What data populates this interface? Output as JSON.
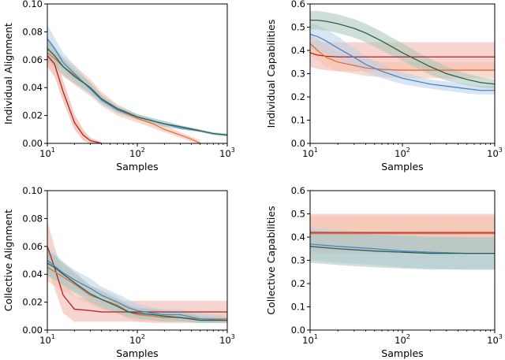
{
  "chart_data": [
    {
      "type": "line",
      "id": "ia",
      "xlabel": "Samples",
      "ylabel": "Individual Alignment",
      "xscale": "log",
      "xlim": [
        10,
        1000
      ],
      "ylim": [
        0,
        0.1
      ],
      "yticks": [
        "0.00",
        "0.02",
        "0.04",
        "0.06",
        "0.08",
        "0.10"
      ],
      "xticks": [
        {
          "base": "10",
          "exp": "1"
        },
        {
          "base": "10",
          "exp": "2"
        },
        {
          "base": "10",
          "exp": "3"
        }
      ],
      "series": [
        {
          "name": "red",
          "color": "#b22222",
          "band": "#e8a090",
          "x": [
            10,
            12,
            15,
            20,
            25,
            30,
            40
          ],
          "y": [
            0.063,
            0.057,
            0.037,
            0.015,
            0.006,
            0.002,
            0.0
          ],
          "lo": [
            0.055,
            0.048,
            0.03,
            0.01,
            0.002,
            0.0,
            0.0
          ],
          "hi": [
            0.07,
            0.064,
            0.045,
            0.021,
            0.01,
            0.004,
            0.001
          ]
        },
        {
          "name": "orange",
          "color": "#e07040",
          "band": "#f5b8a0",
          "x": [
            10,
            12,
            15,
            20,
            30,
            40,
            60,
            100,
            150,
            200,
            300,
            400,
            500
          ],
          "y": [
            0.065,
            0.061,
            0.055,
            0.049,
            0.04,
            0.032,
            0.024,
            0.018,
            0.014,
            0.01,
            0.006,
            0.003,
            0.0
          ],
          "lo": [
            0.058,
            0.054,
            0.048,
            0.042,
            0.034,
            0.027,
            0.02,
            0.015,
            0.011,
            0.008,
            0.004,
            0.001,
            0.0
          ],
          "hi": [
            0.072,
            0.068,
            0.062,
            0.056,
            0.046,
            0.037,
            0.028,
            0.021,
            0.017,
            0.013,
            0.008,
            0.005,
            0.002
          ]
        },
        {
          "name": "blue",
          "color": "#4a86c0",
          "band": "#b8d0ea",
          "x": [
            10,
            12,
            15,
            20,
            30,
            40,
            60,
            100,
            150,
            200,
            300,
            500,
            700,
            1000
          ],
          "y": [
            0.075,
            0.068,
            0.058,
            0.05,
            0.039,
            0.031,
            0.024,
            0.019,
            0.016,
            0.014,
            0.011,
            0.009,
            0.007,
            0.006
          ],
          "lo": [
            0.065,
            0.06,
            0.052,
            0.045,
            0.035,
            0.028,
            0.022,
            0.017,
            0.014,
            0.012,
            0.01,
            0.008,
            0.006,
            0.005
          ],
          "hi": [
            0.085,
            0.076,
            0.065,
            0.056,
            0.043,
            0.034,
            0.026,
            0.021,
            0.018,
            0.016,
            0.013,
            0.01,
            0.008,
            0.007
          ]
        },
        {
          "name": "green",
          "color": "#2f5f4f",
          "band": "#a8c4b8",
          "x": [
            10,
            12,
            15,
            20,
            30,
            40,
            60,
            100,
            150,
            200,
            300,
            500,
            700,
            1000
          ],
          "y": [
            0.068,
            0.063,
            0.055,
            0.048,
            0.04,
            0.032,
            0.025,
            0.019,
            0.016,
            0.014,
            0.012,
            0.009,
            0.007,
            0.006
          ],
          "lo": [
            0.06,
            0.056,
            0.049,
            0.043,
            0.036,
            0.029,
            0.022,
            0.017,
            0.014,
            0.012,
            0.01,
            0.008,
            0.006,
            0.005
          ],
          "hi": [
            0.076,
            0.07,
            0.061,
            0.053,
            0.044,
            0.035,
            0.027,
            0.021,
            0.018,
            0.016,
            0.013,
            0.01,
            0.008,
            0.007
          ]
        }
      ]
    },
    {
      "type": "line",
      "id": "ic",
      "xlabel": "Samples",
      "ylabel": "Individual Capabilities",
      "xscale": "log",
      "xlim": [
        10,
        1000
      ],
      "ylim": [
        0,
        0.6
      ],
      "yticks": [
        "0.0",
        "0.1",
        "0.2",
        "0.3",
        "0.4",
        "0.5",
        "0.6"
      ],
      "xticks": [
        {
          "base": "10",
          "exp": "1"
        },
        {
          "base": "10",
          "exp": "2"
        },
        {
          "base": "10",
          "exp": "3"
        }
      ],
      "series": [
        {
          "name": "red",
          "color": "#b22222",
          "band": "#f0b0a8",
          "x": [
            10,
            12,
            15,
            20,
            30,
            40,
            60,
            100,
            200,
            500,
            1000
          ],
          "y": [
            0.39,
            0.38,
            0.375,
            0.372,
            0.372,
            0.372,
            0.372,
            0.372,
            0.372,
            0.372,
            0.372
          ],
          "lo": [
            0.33,
            0.32,
            0.315,
            0.31,
            0.31,
            0.31,
            0.31,
            0.31,
            0.31,
            0.31,
            0.31
          ],
          "hi": [
            0.44,
            0.44,
            0.435,
            0.435,
            0.435,
            0.435,
            0.435,
            0.435,
            0.435,
            0.435,
            0.435
          ]
        },
        {
          "name": "orange",
          "color": "#e07040",
          "band": "#f5c0a8",
          "x": [
            10,
            12,
            15,
            20,
            30,
            40,
            60,
            100,
            200,
            500,
            1000
          ],
          "y": [
            0.43,
            0.4,
            0.37,
            0.35,
            0.335,
            0.325,
            0.318,
            0.315,
            0.315,
            0.315,
            0.315
          ],
          "lo": [
            0.38,
            0.36,
            0.33,
            0.31,
            0.3,
            0.29,
            0.285,
            0.28,
            0.28,
            0.28,
            0.28
          ],
          "hi": [
            0.48,
            0.45,
            0.42,
            0.39,
            0.37,
            0.36,
            0.35,
            0.35,
            0.35,
            0.35,
            0.35
          ]
        },
        {
          "name": "blue",
          "color": "#4a86c0",
          "band": "#b8d0ea",
          "x": [
            10,
            12,
            15,
            20,
            30,
            40,
            60,
            100,
            200,
            500,
            700,
            1000
          ],
          "y": [
            0.47,
            0.46,
            0.44,
            0.41,
            0.37,
            0.34,
            0.31,
            0.28,
            0.255,
            0.235,
            0.228,
            0.228
          ],
          "lo": [
            0.41,
            0.4,
            0.385,
            0.36,
            0.33,
            0.305,
            0.28,
            0.255,
            0.235,
            0.215,
            0.21,
            0.21
          ],
          "hi": [
            0.52,
            0.51,
            0.49,
            0.46,
            0.41,
            0.375,
            0.34,
            0.305,
            0.275,
            0.255,
            0.248,
            0.248
          ]
        },
        {
          "name": "green",
          "color": "#2f5f4f",
          "band": "#a8c4b8",
          "x": [
            10,
            12,
            15,
            20,
            30,
            40,
            60,
            100,
            150,
            200,
            300,
            500,
            700,
            1000
          ],
          "y": [
            0.53,
            0.53,
            0.525,
            0.515,
            0.495,
            0.475,
            0.44,
            0.39,
            0.355,
            0.33,
            0.3,
            0.275,
            0.262,
            0.255
          ],
          "lo": [
            0.49,
            0.49,
            0.485,
            0.475,
            0.455,
            0.435,
            0.4,
            0.355,
            0.32,
            0.295,
            0.27,
            0.25,
            0.24,
            0.235
          ],
          "hi": [
            0.57,
            0.57,
            0.565,
            0.555,
            0.535,
            0.515,
            0.48,
            0.43,
            0.39,
            0.365,
            0.33,
            0.3,
            0.285,
            0.275
          ]
        }
      ]
    },
    {
      "type": "line",
      "id": "ca",
      "xlabel": "Samples",
      "ylabel": "Collective Alignment",
      "xscale": "log",
      "xlim": [
        10,
        1000
      ],
      "ylim": [
        0,
        0.1
      ],
      "yticks": [
        "0.00",
        "0.02",
        "0.04",
        "0.06",
        "0.08",
        "0.10"
      ],
      "xticks": [
        {
          "base": "10",
          "exp": "1"
        },
        {
          "base": "10",
          "exp": "2"
        },
        {
          "base": "10",
          "exp": "3"
        }
      ],
      "series": [
        {
          "name": "red",
          "color": "#b22222",
          "band": "#f0b0a8",
          "x": [
            10,
            12,
            15,
            20,
            30,
            40,
            60,
            100,
            200,
            500,
            1000
          ],
          "y": [
            0.06,
            0.045,
            0.025,
            0.015,
            0.014,
            0.013,
            0.013,
            0.013,
            0.013,
            0.013,
            0.013
          ],
          "lo": [
            0.045,
            0.03,
            0.012,
            0.006,
            0.006,
            0.006,
            0.006,
            0.006,
            0.006,
            0.006,
            0.006
          ],
          "hi": [
            0.078,
            0.06,
            0.04,
            0.024,
            0.022,
            0.021,
            0.021,
            0.021,
            0.021,
            0.021,
            0.021
          ]
        },
        {
          "name": "orange",
          "color": "#e07040",
          "band": "#f5c0a8",
          "x": [
            10,
            12,
            15,
            20,
            30,
            40,
            60,
            80,
            100,
            150,
            200,
            300,
            500,
            1000
          ],
          "y": [
            0.045,
            0.042,
            0.038,
            0.033,
            0.025,
            0.022,
            0.018,
            0.013,
            0.011,
            0.01,
            0.009,
            0.009,
            0.008,
            0.008
          ],
          "lo": [
            0.035,
            0.032,
            0.028,
            0.024,
            0.018,
            0.015,
            0.012,
            0.008,
            0.006,
            0.005,
            0.005,
            0.005,
            0.005,
            0.005
          ],
          "hi": [
            0.056,
            0.052,
            0.048,
            0.042,
            0.032,
            0.029,
            0.024,
            0.018,
            0.016,
            0.015,
            0.014,
            0.013,
            0.012,
            0.011
          ]
        },
        {
          "name": "blue",
          "color": "#4a86c0",
          "band": "#b8d0ea",
          "x": [
            10,
            12,
            15,
            20,
            30,
            40,
            60,
            80,
            100,
            150,
            200,
            300,
            500,
            1000
          ],
          "y": [
            0.05,
            0.046,
            0.041,
            0.036,
            0.03,
            0.025,
            0.02,
            0.016,
            0.014,
            0.012,
            0.011,
            0.011,
            0.008,
            0.007
          ],
          "lo": [
            0.04,
            0.037,
            0.033,
            0.028,
            0.023,
            0.019,
            0.014,
            0.011,
            0.009,
            0.008,
            0.007,
            0.007,
            0.005,
            0.005
          ],
          "hi": [
            0.06,
            0.055,
            0.049,
            0.043,
            0.037,
            0.031,
            0.026,
            0.022,
            0.019,
            0.016,
            0.015,
            0.015,
            0.012,
            0.01
          ]
        },
        {
          "name": "green",
          "color": "#2f5f4f",
          "band": "#a8c4b8",
          "x": [
            10,
            12,
            15,
            20,
            30,
            40,
            60,
            80,
            100,
            150,
            200,
            300,
            500,
            1000
          ],
          "y": [
            0.048,
            0.045,
            0.04,
            0.034,
            0.026,
            0.022,
            0.017,
            0.013,
            0.012,
            0.011,
            0.01,
            0.009,
            0.007,
            0.007
          ],
          "lo": [
            0.039,
            0.036,
            0.032,
            0.027,
            0.02,
            0.016,
            0.012,
            0.009,
            0.008,
            0.007,
            0.006,
            0.006,
            0.005,
            0.005
          ],
          "hi": [
            0.057,
            0.054,
            0.048,
            0.041,
            0.032,
            0.028,
            0.022,
            0.018,
            0.016,
            0.015,
            0.014,
            0.013,
            0.01,
            0.009
          ]
        }
      ]
    },
    {
      "type": "line",
      "id": "cc",
      "xlabel": "Samples",
      "ylabel": "Collective Capabilities",
      "xscale": "log",
      "xlim": [
        10,
        1000
      ],
      "ylim": [
        0,
        0.6
      ],
      "yticks": [
        "0.0",
        "0.1",
        "0.2",
        "0.3",
        "0.4",
        "0.5",
        "0.6"
      ],
      "xticks": [
        {
          "base": "10",
          "exp": "1"
        },
        {
          "base": "10",
          "exp": "2"
        },
        {
          "base": "10",
          "exp": "3"
        }
      ],
      "series": [
        {
          "name": "red",
          "color": "#b22222",
          "band": "#f0b0a8",
          "x": [
            10,
            1000
          ],
          "y": [
            0.42,
            0.42
          ],
          "lo": [
            0.33,
            0.33
          ],
          "hi": [
            0.5,
            0.5
          ]
        },
        {
          "name": "orange",
          "color": "#e07040",
          "band": "#f5c0a8",
          "x": [
            10,
            1000
          ],
          "y": [
            0.415,
            0.415
          ],
          "lo": [
            0.34,
            0.34
          ],
          "hi": [
            0.49,
            0.49
          ]
        },
        {
          "name": "blue",
          "color": "#4a86c0",
          "band": "#b8d0ea",
          "x": [
            10,
            20,
            50,
            100,
            200,
            500,
            1000
          ],
          "y": [
            0.37,
            0.36,
            0.35,
            0.34,
            0.335,
            0.33,
            0.33
          ],
          "lo": [
            0.3,
            0.29,
            0.28,
            0.27,
            0.265,
            0.26,
            0.26
          ],
          "hi": [
            0.44,
            0.43,
            0.42,
            0.41,
            0.405,
            0.4,
            0.4
          ]
        },
        {
          "name": "green",
          "color": "#2f5f4f",
          "band": "#a8c4b8",
          "x": [
            10,
            20,
            50,
            100,
            200,
            500,
            1000
          ],
          "y": [
            0.36,
            0.35,
            0.34,
            0.335,
            0.33,
            0.33,
            0.33
          ],
          "lo": [
            0.29,
            0.28,
            0.27,
            0.265,
            0.26,
            0.26,
            0.26
          ],
          "hi": [
            0.43,
            0.42,
            0.41,
            0.405,
            0.4,
            0.4,
            0.4
          ]
        }
      ]
    }
  ]
}
